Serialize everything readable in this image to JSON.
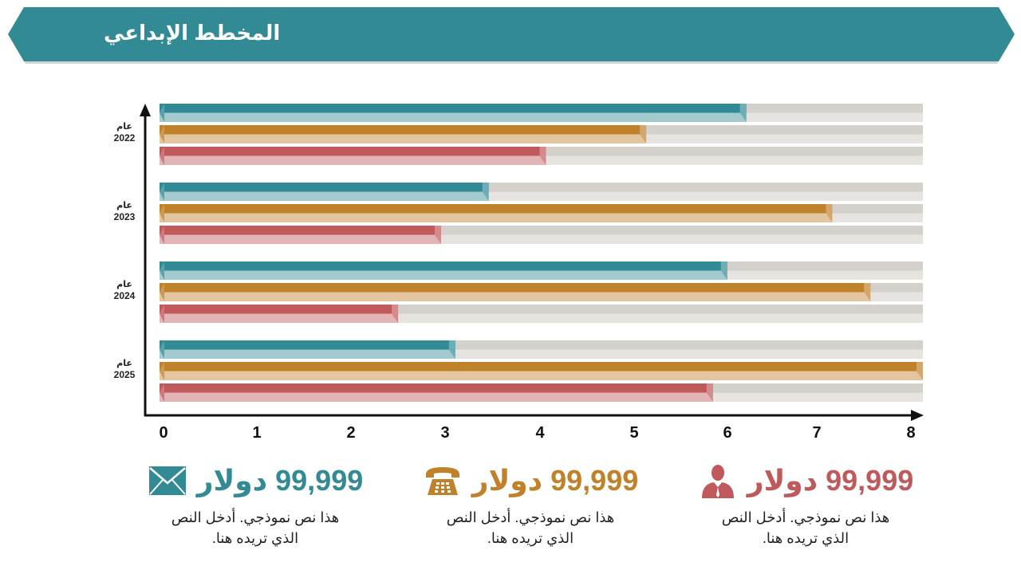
{
  "header": {
    "title": "المخطط الإبداعي",
    "color": "#318a94"
  },
  "chart_data": {
    "type": "bar",
    "orientation": "horizontal",
    "categories": [
      {
        "word": "عام",
        "year": "2022"
      },
      {
        "word": "عام",
        "year": "2023"
      },
      {
        "word": "عام",
        "year": "2024"
      },
      {
        "word": "عام",
        "year": "2025"
      }
    ],
    "x_ticks": [
      "0",
      "1",
      "2",
      "3",
      "4",
      "5",
      "6",
      "7",
      "8"
    ],
    "xlim": [
      0,
      8
    ],
    "grid": false,
    "series": [
      {
        "color": "#318a94",
        "values": [
          6.15,
          3.45,
          5.95,
          3.1
        ]
      },
      {
        "color": "#c0812b",
        "values": [
          5.1,
          7.05,
          7.45,
          8.0
        ]
      },
      {
        "color": "#c0595b",
        "values": [
          4.05,
          2.95,
          2.5,
          5.8
        ]
      }
    ]
  },
  "stats": [
    {
      "value": "99,999 دولار",
      "text_line1": "هذا نص نموذجي. أدخل النص",
      "text_line2": "الذي تريده هنا.",
      "color": "#318a94",
      "icon": "envelope-icon"
    },
    {
      "value": "99,999 دولار",
      "text_line1": "هذا نص نموذجي. أدخل النص",
      "text_line2": "الذي تريده هنا.",
      "color": "#c0812b",
      "icon": "telephone-icon"
    },
    {
      "value": "99,999 دولار",
      "text_line1": "هذا نص نموذجي. أدخل النص",
      "text_line2": "الذي تريده هنا.",
      "color": "#c0595b",
      "icon": "person-icon"
    }
  ]
}
